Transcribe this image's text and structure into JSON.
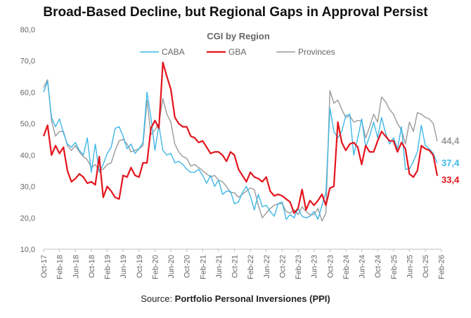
{
  "chart_data": {
    "type": "line",
    "title": "Broad-Based Decline, but Regional Gaps in Approval Persist",
    "subtitle": "CGI by Region",
    "xlabel": "",
    "ylabel": "",
    "ylim": [
      10,
      80
    ],
    "yticks": [
      "10,0",
      "20,0",
      "30,0",
      "40,0",
      "50,0",
      "60,0",
      "70,0",
      "80,0"
    ],
    "ytick_values": [
      10,
      20,
      30,
      40,
      50,
      60,
      70,
      80
    ],
    "xtick_labels": [
      "Oct-17",
      "Feb-18",
      "Jun-18",
      "Oct-18",
      "Feb-19",
      "Jun-19",
      "Oct-19",
      "Feb-20",
      "Jun-20",
      "Oct-20",
      "Feb-21",
      "Jun-21",
      "Oct-21",
      "Feb-22",
      "Jun-22",
      "Oct-22",
      "Feb-23",
      "Jun-23",
      "Oct-23",
      "Feb-24",
      "Jun-24",
      "Oct-24",
      "Feb-25",
      "Jun-25",
      "Oct-25",
      "Feb-26"
    ],
    "xtick_index": [
      0,
      4,
      8,
      12,
      16,
      20,
      24,
      28,
      32,
      36,
      40,
      44,
      48,
      52,
      56,
      60,
      64,
      68,
      72,
      76,
      80,
      84,
      88,
      92,
      96,
      100
    ],
    "legend": "top-center",
    "series": [
      {
        "name": "CABA",
        "color": "#3fb7e6",
        "end_label": "37,4",
        "values": [
          60.0,
          63.5,
          52.0,
          49.0,
          51.5,
          47.0,
          43.5,
          42.5,
          44.0,
          41.5,
          40.0,
          45.5,
          34.5,
          43.5,
          34.5,
          37.0,
          40.5,
          42.5,
          48.5,
          49.0,
          46.0,
          42.0,
          43.5,
          40.5,
          42.0,
          44.0,
          60.0,
          52.0,
          41.5,
          49.5,
          41.5,
          40.0,
          40.5,
          37.5,
          38.0,
          37.0,
          35.5,
          34.5,
          34.5,
          35.5,
          33.5,
          31.0,
          33.5,
          30.0,
          32.0,
          27.5,
          28.5,
          28.5,
          24.5,
          25.0,
          28.0,
          30.0,
          27.0,
          22.5,
          27.5,
          23.5,
          24.0,
          22.0,
          20.5,
          24.5,
          25.0,
          19.5,
          21.0,
          20.0,
          23.0,
          20.5,
          20.0,
          20.5,
          22.0,
          19.5,
          24.0,
          28.0,
          55.0,
          47.5,
          45.5,
          47.5,
          52.5,
          53.0,
          40.0,
          45.5,
          51.5,
          42.5,
          46.0,
          50.5,
          45.5,
          52.0,
          47.0,
          43.5,
          45.5,
          42.0,
          49.0,
          35.5,
          35.5,
          38.0,
          41.0,
          49.5,
          43.0,
          42.0,
          40.5,
          37.4
        ]
      },
      {
        "name": "GBA",
        "color": "#e3141c",
        "end_label": "33,4",
        "values": [
          46.0,
          49.5,
          40.0,
          43.0,
          40.5,
          42.5,
          35.0,
          31.5,
          32.5,
          34.0,
          33.0,
          31.0,
          31.5,
          30.5,
          39.5,
          26.5,
          30.0,
          28.5,
          26.5,
          26.0,
          33.5,
          33.0,
          36.0,
          33.5,
          33.0,
          37.5,
          37.5,
          48.5,
          51.0,
          48.5,
          69.5,
          65.0,
          61.0,
          52.0,
          50.0,
          49.0,
          49.0,
          46.0,
          45.5,
          44.0,
          44.5,
          42.5,
          40.5,
          41.0,
          41.0,
          40.0,
          38.0,
          41.0,
          40.0,
          35.5,
          33.5,
          31.5,
          34.5,
          33.0,
          32.5,
          31.5,
          33.0,
          28.5,
          27.0,
          27.5,
          27.0,
          26.0,
          25.0,
          21.5,
          23.0,
          29.0,
          22.5,
          25.5,
          24.0,
          25.5,
          27.5,
          24.0,
          29.5,
          30.0,
          50.5,
          44.0,
          41.5,
          43.5,
          44.0,
          42.5,
          37.0,
          43.0,
          41.0,
          41.0,
          44.5,
          47.5,
          46.0,
          44.5,
          44.5,
          41.0,
          44.0,
          42.0,
          34.0,
          33.0,
          35.0,
          43.0,
          42.0,
          41.5,
          40.0,
          33.4
        ]
      },
      {
        "name": "Provinces",
        "color": "#9a9a9a",
        "end_label": "44,4",
        "values": [
          61.5,
          64.0,
          51.0,
          46.0,
          47.5,
          47.5,
          43.0,
          41.5,
          43.0,
          41.0,
          39.5,
          38.5,
          36.0,
          37.0,
          35.0,
          35.5,
          37.0,
          37.5,
          41.5,
          44.5,
          45.0,
          43.5,
          41.0,
          41.5,
          42.0,
          43.0,
          57.5,
          46.5,
          48.0,
          50.0,
          58.0,
          53.0,
          50.5,
          43.5,
          41.0,
          39.5,
          39.0,
          36.5,
          37.0,
          36.0,
          35.0,
          34.0,
          33.0,
          33.5,
          32.0,
          31.5,
          30.0,
          28.0,
          28.0,
          26.5,
          27.5,
          28.5,
          29.5,
          29.0,
          24.0,
          20.0,
          21.5,
          23.0,
          24.0,
          24.5,
          24.5,
          22.0,
          21.5,
          22.5,
          21.0,
          23.5,
          22.0,
          21.0,
          21.0,
          23.0,
          19.0,
          21.5,
          60.5,
          56.5,
          57.5,
          54.5,
          52.0,
          52.5,
          50.5,
          51.0,
          51.0,
          45.5,
          49.0,
          53.0,
          50.5,
          58.5,
          57.0,
          54.5,
          53.0,
          50.0,
          48.0,
          43.5,
          50.5,
          47.5,
          53.5,
          53.0,
          52.0,
          51.5,
          50.0,
          44.4
        ]
      }
    ]
  },
  "source": {
    "prefix": "Source: ",
    "name": "Portfolio Personal Inversiones (PPI)"
  }
}
